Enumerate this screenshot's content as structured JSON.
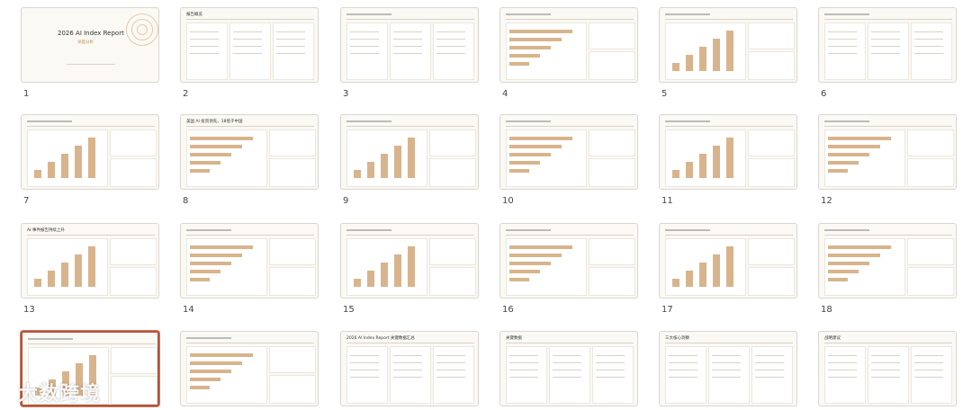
{
  "slides": [
    {
      "number": "1",
      "title": "2026 AI Index Report",
      "subtitle": "深度分析"
    },
    {
      "number": "2",
      "title": "报告概览"
    },
    {
      "number": "3"
    },
    {
      "number": "4"
    },
    {
      "number": "5"
    },
    {
      "number": "6"
    },
    {
      "number": "7"
    },
    {
      "number": "8",
      "title": "美国 AI 投资领先，18倍于中国"
    },
    {
      "number": "9"
    },
    {
      "number": "10"
    },
    {
      "number": "11"
    },
    {
      "number": "12"
    },
    {
      "number": "13",
      "title": "AI 事件报告持续上升"
    },
    {
      "number": "14"
    },
    {
      "number": "15"
    },
    {
      "number": "16"
    },
    {
      "number": "17"
    },
    {
      "number": "18"
    },
    {},
    {},
    {
      "title": "2026 AI Index Report 关键数据汇总"
    },
    {
      "title": "关键数据"
    },
    {
      "title": "三大核心洞察"
    },
    {
      "title": "战略建议"
    }
  ],
  "watermark": "大数跨境"
}
